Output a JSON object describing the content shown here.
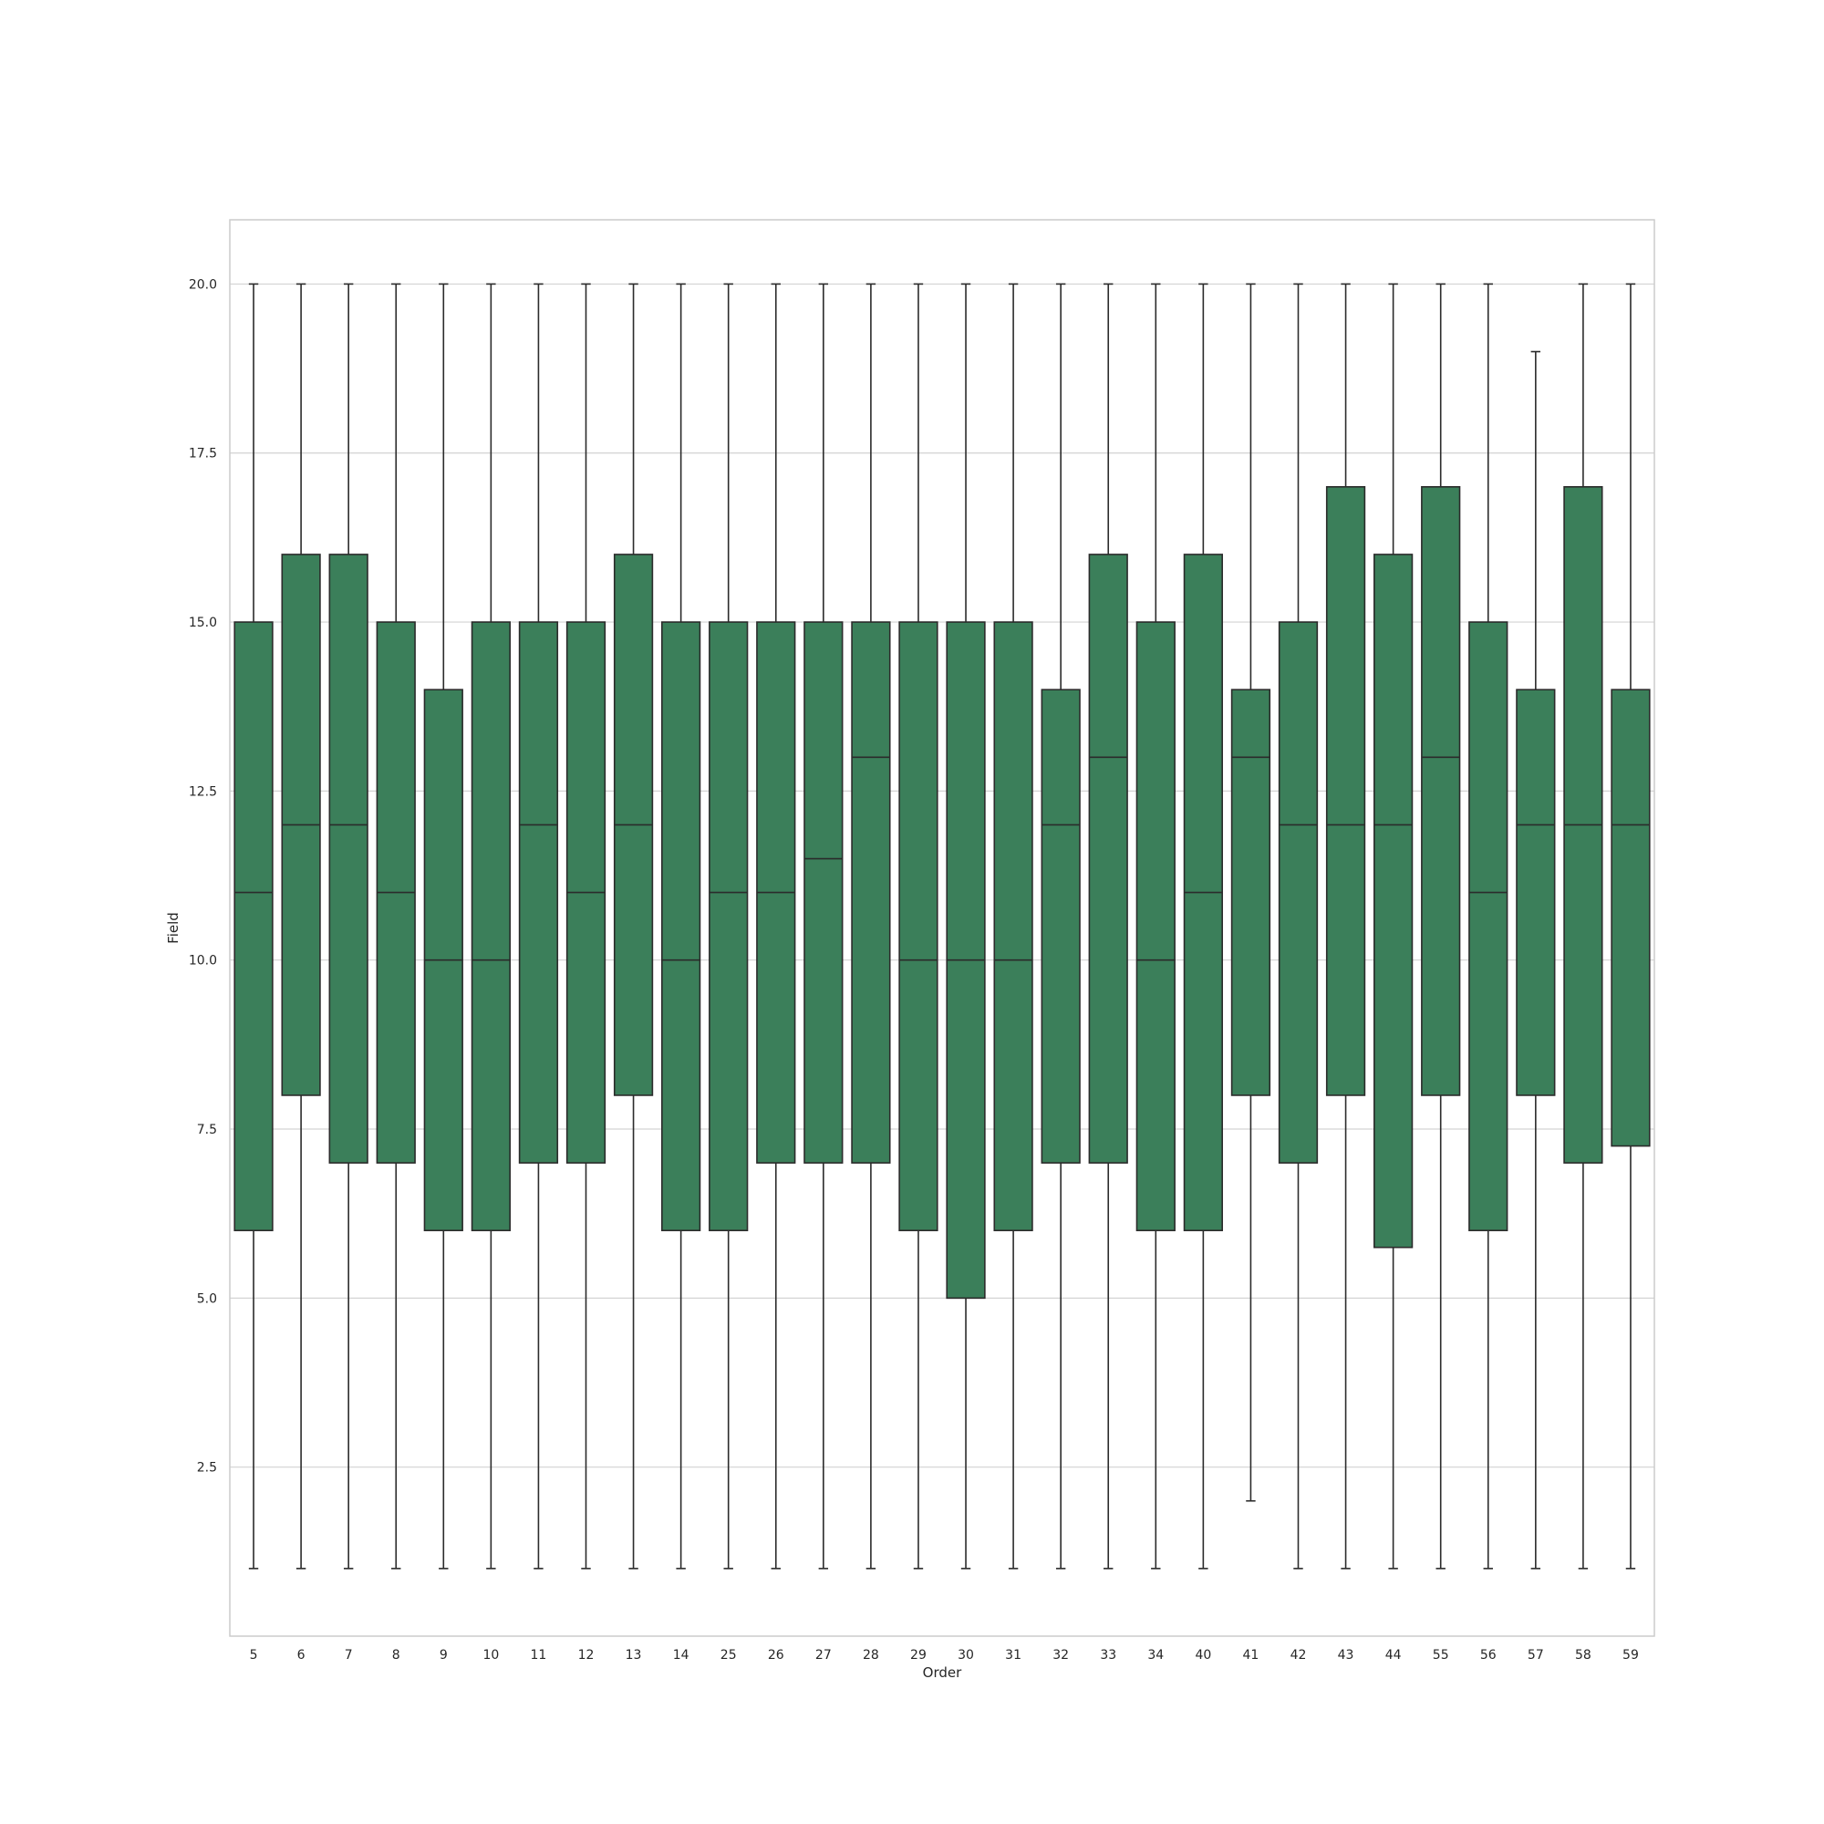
{
  "chart_data": {
    "type": "box",
    "xlabel": "Order",
    "ylabel": "Field",
    "ylim": [
      0.0,
      20.95
    ],
    "yticks": [
      "2.5",
      "5.0",
      "7.5",
      "10.0",
      "12.5",
      "15.0",
      "17.5",
      "20.0"
    ],
    "grid": true,
    "box_color": "#3b7f5a",
    "line_color": "#2b2b2b",
    "grid_color": "#d3d3d3",
    "categories": [
      "5",
      "6",
      "7",
      "8",
      "9",
      "10",
      "11",
      "12",
      "13",
      "14",
      "25",
      "26",
      "27",
      "28",
      "29",
      "30",
      "31",
      "32",
      "33",
      "34",
      "40",
      "41",
      "42",
      "43",
      "44",
      "55",
      "56",
      "57",
      "58",
      "59"
    ],
    "boxes": [
      {
        "whislo": 1,
        "q1": 6,
        "med": 11,
        "q3": 15,
        "whishi": 20
      },
      {
        "whislo": 1,
        "q1": 8,
        "med": 12,
        "q3": 16,
        "whishi": 20
      },
      {
        "whislo": 1,
        "q1": 7,
        "med": 12,
        "q3": 16,
        "whishi": 20
      },
      {
        "whislo": 1,
        "q1": 7,
        "med": 11,
        "q3": 15,
        "whishi": 20
      },
      {
        "whislo": 1,
        "q1": 6,
        "med": 10,
        "q3": 14,
        "whishi": 20
      },
      {
        "whislo": 1,
        "q1": 6,
        "med": 10,
        "q3": 15,
        "whishi": 20
      },
      {
        "whislo": 1,
        "q1": 7,
        "med": 12,
        "q3": 15,
        "whishi": 20
      },
      {
        "whislo": 1,
        "q1": 7,
        "med": 11,
        "q3": 15,
        "whishi": 20
      },
      {
        "whislo": 1,
        "q1": 8,
        "med": 12,
        "q3": 16,
        "whishi": 20
      },
      {
        "whislo": 1,
        "q1": 6,
        "med": 10,
        "q3": 15,
        "whishi": 20
      },
      {
        "whislo": 1,
        "q1": 6,
        "med": 11,
        "q3": 15,
        "whishi": 20
      },
      {
        "whislo": 1,
        "q1": 7,
        "med": 11,
        "q3": 15,
        "whishi": 20
      },
      {
        "whislo": 1,
        "q1": 7,
        "med": 11.5,
        "q3": 15,
        "whishi": 20
      },
      {
        "whislo": 1,
        "q1": 7,
        "med": 13,
        "q3": 15,
        "whishi": 20
      },
      {
        "whislo": 1,
        "q1": 6,
        "med": 10,
        "q3": 15,
        "whishi": 20
      },
      {
        "whislo": 1,
        "q1": 5,
        "med": 10,
        "q3": 15,
        "whishi": 20
      },
      {
        "whislo": 1,
        "q1": 6,
        "med": 10,
        "q3": 15,
        "whishi": 20
      },
      {
        "whislo": 1,
        "q1": 7,
        "med": 12,
        "q3": 14,
        "whishi": 20
      },
      {
        "whislo": 1,
        "q1": 7,
        "med": 13,
        "q3": 16,
        "whishi": 20
      },
      {
        "whislo": 1,
        "q1": 6,
        "med": 10,
        "q3": 15,
        "whishi": 20
      },
      {
        "whislo": 1,
        "q1": 6,
        "med": 11,
        "q3": 16,
        "whishi": 20
      },
      {
        "whislo": 2,
        "q1": 8,
        "med": 13,
        "q3": 14,
        "whishi": 20
      },
      {
        "whislo": 1,
        "q1": 7,
        "med": 12,
        "q3": 15,
        "whishi": 20
      },
      {
        "whislo": 1,
        "q1": 8,
        "med": 12,
        "q3": 17,
        "whishi": 20
      },
      {
        "whislo": 1,
        "q1": 5.75,
        "med": 12,
        "q3": 16,
        "whishi": 20
      },
      {
        "whislo": 1,
        "q1": 8,
        "med": 13,
        "q3": 17,
        "whishi": 20
      },
      {
        "whislo": 1,
        "q1": 6,
        "med": 11,
        "q3": 15,
        "whishi": 20
      },
      {
        "whislo": 1,
        "q1": 8,
        "med": 12,
        "q3": 14,
        "whishi": 19
      },
      {
        "whislo": 1,
        "q1": 7,
        "med": 12,
        "q3": 17,
        "whishi": 20
      },
      {
        "whislo": 1,
        "q1": 7.25,
        "med": 12,
        "q3": 14,
        "whishi": 20
      }
    ]
  }
}
